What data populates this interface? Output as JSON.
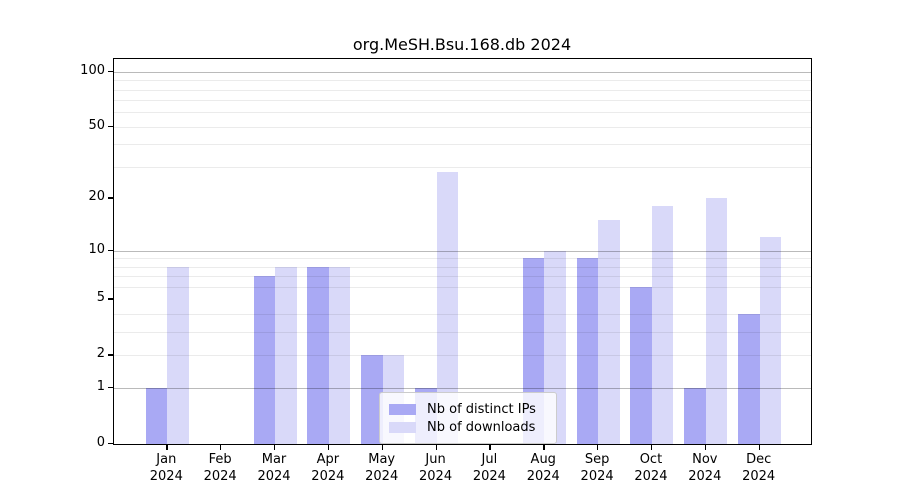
{
  "title": "org.MeSH.Bsu.168.db 2024",
  "chart_data": {
    "type": "bar",
    "title": "org.MeSH.Bsu.168.db 2024",
    "xlabel": "",
    "ylabel": "",
    "y_scale": "log1p",
    "ylim": [
      0,
      118
    ],
    "y_ticks": [
      0,
      1,
      2,
      5,
      10,
      20,
      50,
      100
    ],
    "y_major_gridlines": [
      1,
      10,
      100
    ],
    "y_minor_gridlines": [
      2,
      3,
      4,
      6,
      7,
      8,
      9,
      30,
      40,
      50,
      60,
      70,
      80,
      90
    ],
    "grid": true,
    "legend_position": "lower center",
    "categories": [
      {
        "month": "Jan",
        "year": "2024"
      },
      {
        "month": "Feb",
        "year": "2024"
      },
      {
        "month": "Mar",
        "year": "2024"
      },
      {
        "month": "Apr",
        "year": "2024"
      },
      {
        "month": "May",
        "year": "2024"
      },
      {
        "month": "Jun",
        "year": "2024"
      },
      {
        "month": "Jul",
        "year": "2024"
      },
      {
        "month": "Aug",
        "year": "2024"
      },
      {
        "month": "Sep",
        "year": "2024"
      },
      {
        "month": "Oct",
        "year": "2024"
      },
      {
        "month": "Nov",
        "year": "2024"
      },
      {
        "month": "Dec",
        "year": "2024"
      }
    ],
    "series": [
      {
        "name": "Nb of distinct IPs",
        "color": "#a9a9f4",
        "values": [
          1,
          0,
          7,
          8,
          2,
          1,
          0,
          9,
          9,
          6,
          1,
          4
        ]
      },
      {
        "name": "Nb of downloads",
        "color": "#d9d9f9",
        "values": [
          8,
          0,
          8,
          8,
          2,
          28,
          0,
          10,
          15,
          18,
          20,
          12
        ]
      }
    ]
  }
}
